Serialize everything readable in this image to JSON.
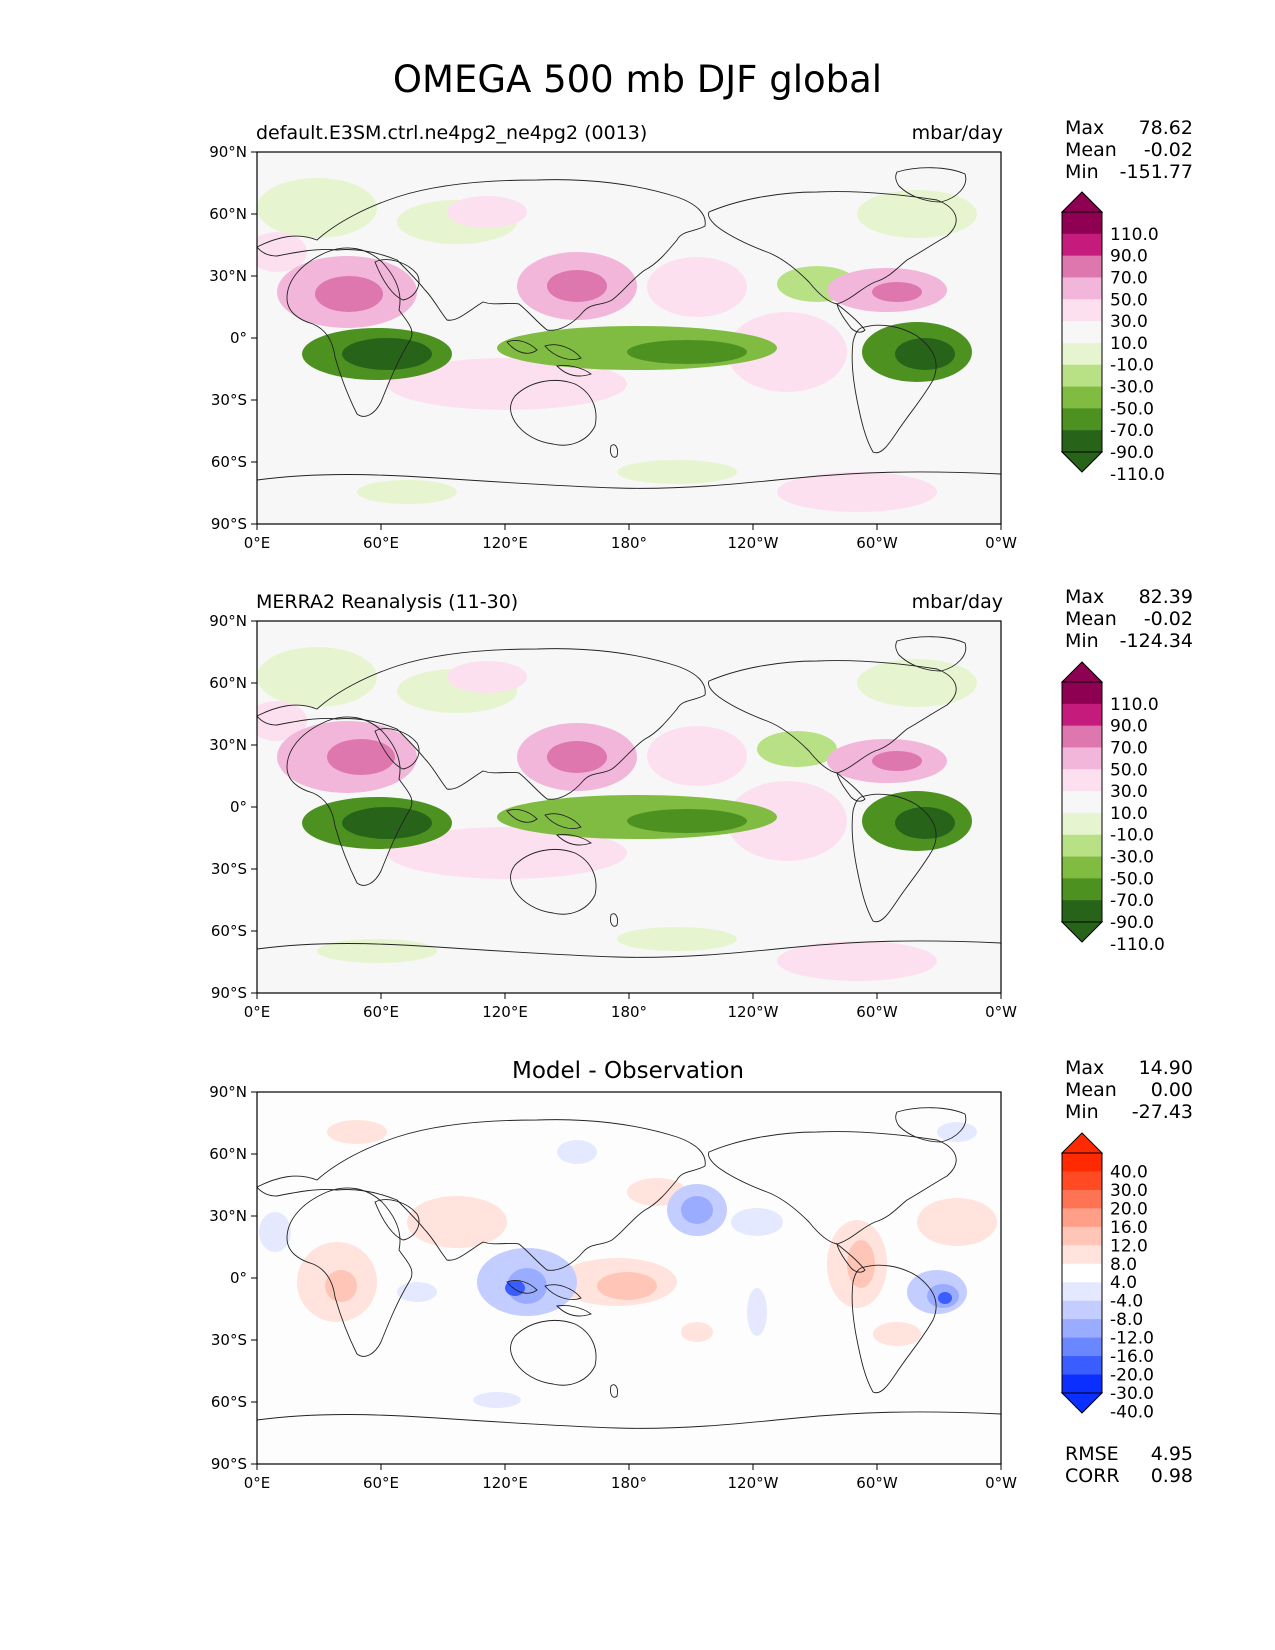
{
  "title": "OMEGA 500 mb DJF global",
  "lon_ticks": [
    "0°E",
    "60°E",
    "120°E",
    "180°",
    "120°W",
    "60°W",
    "0°W"
  ],
  "lat_ticks": [
    "90°N",
    "60°N",
    "30°N",
    "0°",
    "30°S",
    "60°S",
    "90°S"
  ],
  "colors": {
    "seq_levels": [
      "#276419",
      "#4d9221",
      "#7fbc41",
      "#b8e186",
      "#e6f5d0",
      "#f7f7f7",
      "#fde0ef",
      "#f1b6da",
      "#de77ae",
      "#c51b7d",
      "#8e0152"
    ],
    "diff_levels": [
      "#0b2fff",
      "#3a5dff",
      "#6b87ff",
      "#9aacff",
      "#c3cdff",
      "#e5e9ff",
      "#ffffff",
      "#ffe3dc",
      "#ffc6b8",
      "#ff9f88",
      "#ff7355",
      "#ff4a24",
      "#ff2a00"
    ]
  },
  "panels": [
    {
      "id": "model",
      "left_label": "default.E3SM.ctrl.ne4pg2_ne4pg2 (0013)",
      "right_label": "mbar/day",
      "center_label": "",
      "stats": {
        "max_label": "Max",
        "max": "78.62",
        "mean_label": "Mean",
        "mean": "-0.02",
        "min_label": "Min",
        "min": "-151.77"
      },
      "colorbar_labels": [
        "110.0",
        "90.0",
        "70.0",
        "50.0",
        "30.0",
        "10.0",
        "-10.0",
        "-30.0",
        "-50.0",
        "-70.0",
        "-90.0",
        "-110.0"
      ]
    },
    {
      "id": "obs",
      "left_label": "MERRA2 Reanalysis (11-30)",
      "right_label": "mbar/day",
      "center_label": "",
      "stats": {
        "max_label": "Max",
        "max": "82.39",
        "mean_label": "Mean",
        "mean": "-0.02",
        "min_label": "Min",
        "min": "-124.34"
      },
      "colorbar_labels": [
        "110.0",
        "90.0",
        "70.0",
        "50.0",
        "30.0",
        "10.0",
        "-10.0",
        "-30.0",
        "-50.0",
        "-70.0",
        "-90.0",
        "-110.0"
      ]
    },
    {
      "id": "diff",
      "left_label": "",
      "right_label": "",
      "center_label": "Model - Observation",
      "stats": {
        "max_label": "Max",
        "max": "14.90",
        "mean_label": "Mean",
        "mean": "0.00",
        "min_label": "Min",
        "min": "-27.43"
      },
      "colorbar_labels": [
        "40.0",
        "30.0",
        "20.0",
        "16.0",
        "12.0",
        "8.0",
        "4.0",
        "-4.0",
        "-8.0",
        "-12.0",
        "-16.0",
        "-20.0",
        "-30.0",
        "-40.0"
      ],
      "rmse_label": "RMSE",
      "rmse": "4.95",
      "corr_label": "CORR",
      "corr": "0.98"
    }
  ]
}
